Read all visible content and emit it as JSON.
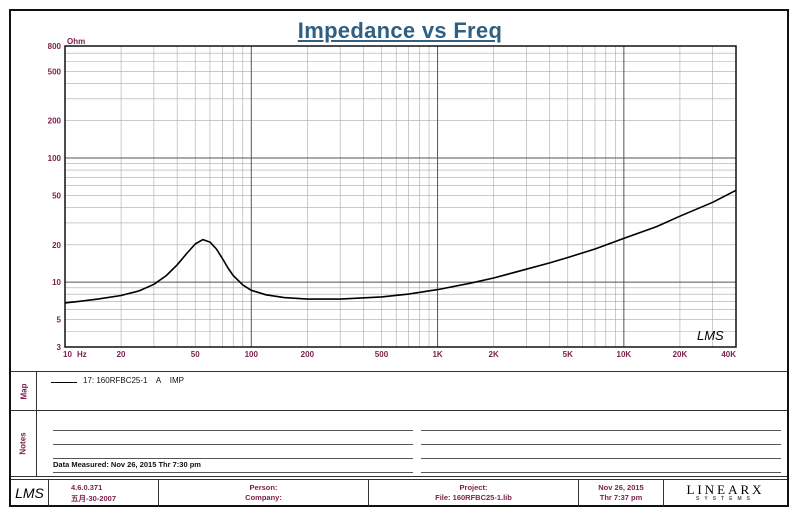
{
  "title": "Impedance vs Freq",
  "chart_data": {
    "type": "line",
    "title": "Impedance vs Freq",
    "xlabel": "Hz",
    "ylabel": "Ohm",
    "xscale": "log",
    "yscale": "log",
    "xlim": [
      10,
      40000
    ],
    "ylim": [
      3,
      800
    ],
    "grid": true,
    "x_ticks": [
      "10",
      "20",
      "50",
      "100",
      "200",
      "500",
      "1K",
      "2K",
      "5K",
      "10K",
      "20K",
      "40K"
    ],
    "y_ticks": [
      "3",
      "5",
      "10",
      "20",
      "50",
      "100",
      "200",
      "500",
      "800"
    ],
    "series": [
      {
        "name": "17: 160RFBC25-1",
        "x": [
          10,
          12,
          15,
          20,
          25,
          30,
          35,
          40,
          45,
          50,
          55,
          60,
          65,
          70,
          75,
          80,
          90,
          100,
          120,
          150,
          200,
          300,
          500,
          700,
          1000,
          1500,
          2000,
          3000,
          4000,
          5000,
          7000,
          10000,
          15000,
          20000,
          30000,
          40000
        ],
        "y": [
          6.8,
          7.0,
          7.3,
          7.8,
          8.5,
          9.6,
          11.3,
          13.8,
          17.0,
          20.3,
          22.0,
          21.0,
          18.5,
          15.5,
          13.0,
          11.3,
          9.5,
          8.6,
          7.9,
          7.5,
          7.3,
          7.3,
          7.6,
          8.0,
          8.7,
          9.8,
          10.8,
          12.7,
          14.3,
          15.8,
          18.5,
          22.5,
          28.0,
          34.0,
          44.0,
          55.0
        ]
      }
    ]
  },
  "watermark": "LMS",
  "legend": {
    "entry": "17: 160RFBC25-1    A    IMP"
  },
  "tabs": {
    "map": "Map",
    "notes": "Notes"
  },
  "notes": {
    "data_measured": "Data Measured: Nov 26, 2015  Thr  7:30 pm"
  },
  "footer": {
    "logo": "LMS",
    "version": "4.6.0.371",
    "version_date": "五月-30-2007",
    "person_label": "Person:",
    "company_label": "Company:",
    "project_label": "Project:",
    "file_label": "File: 160RFBC25-1.lib",
    "date": "Nov 26, 2015",
    "time": "Thr  7:37 pm",
    "brand": "LINEARX",
    "brand_sub": "SYSTEMS"
  }
}
